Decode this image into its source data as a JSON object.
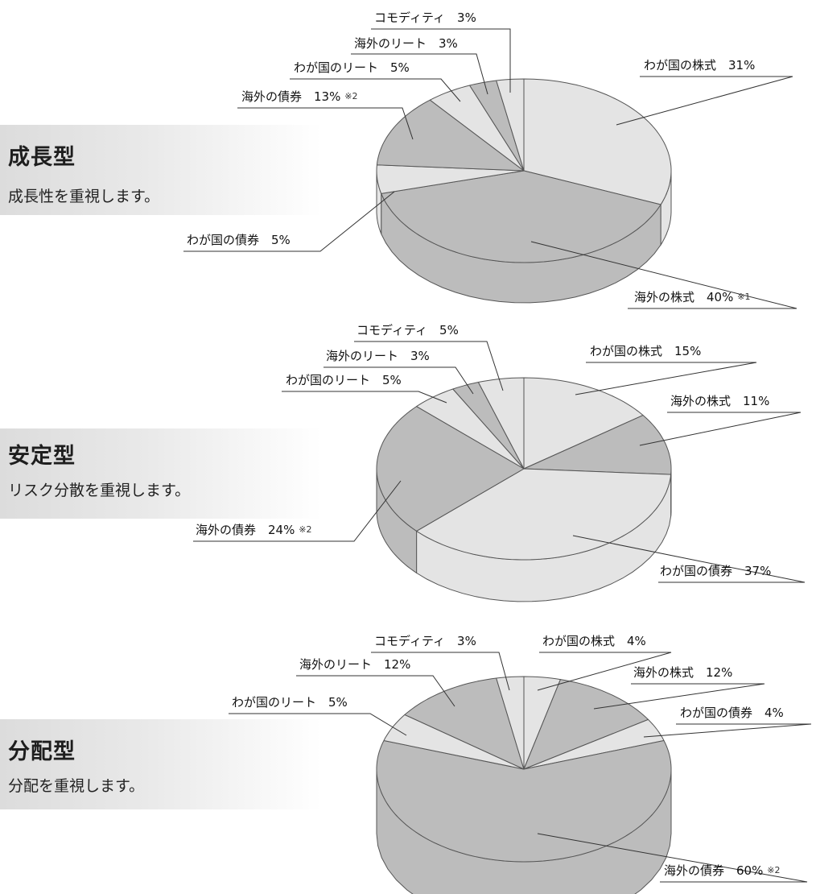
{
  "sections": [
    {
      "title": "成長型",
      "subtitle": "成長性を重視します。"
    },
    {
      "title": "安定型",
      "subtitle": "リスク分散を重視します。"
    },
    {
      "title": "分配型",
      "subtitle": "分配を重視します。"
    }
  ],
  "colors": {
    "dark": "#bcbcbc",
    "light": "#e4e4e4",
    "edge": "#555555"
  },
  "chart_data": [
    {
      "type": "pie",
      "title": "成長型",
      "slices": [
        {
          "label": "わが国の株式",
          "value": 31,
          "text": "わが国の株式　31%",
          "note": "",
          "shade": "light"
        },
        {
          "label": "海外の株式",
          "value": 40,
          "text": "海外の株式　40%",
          "note": "※1",
          "shade": "dark"
        },
        {
          "label": "わが国の債券",
          "value": 5,
          "text": "わが国の債券　5%",
          "note": "",
          "shade": "light"
        },
        {
          "label": "海外の債券",
          "value": 13,
          "text": "海外の債券　13%",
          "note": "※2",
          "shade": "dark"
        },
        {
          "label": "わが国のリート",
          "value": 5,
          "text": "わが国のリート　5%",
          "note": "",
          "shade": "light"
        },
        {
          "label": "海外のリート",
          "value": 3,
          "text": "海外のリート　3%",
          "note": "",
          "shade": "dark"
        },
        {
          "label": "コモディティ",
          "value": 3,
          "text": "コモディティ　3%",
          "note": "",
          "shade": "light"
        }
      ]
    },
    {
      "type": "pie",
      "title": "安定型",
      "slices": [
        {
          "label": "わが国の株式",
          "value": 15,
          "text": "わが国の株式　15%",
          "note": "",
          "shade": "light"
        },
        {
          "label": "海外の株式",
          "value": 11,
          "text": "海外の株式　11%",
          "note": "",
          "shade": "dark"
        },
        {
          "label": "わが国の債券",
          "value": 37,
          "text": "わが国の債券　37%",
          "note": "",
          "shade": "light"
        },
        {
          "label": "海外の債券",
          "value": 24,
          "text": "海外の債券　24%",
          "note": "※2",
          "shade": "dark"
        },
        {
          "label": "わが国のリート",
          "value": 5,
          "text": "わが国のリート　5%",
          "note": "",
          "shade": "light"
        },
        {
          "label": "海外のリート",
          "value": 3,
          "text": "海外のリート　3%",
          "note": "",
          "shade": "dark"
        },
        {
          "label": "コモディティ",
          "value": 5,
          "text": "コモディティ　5%",
          "note": "",
          "shade": "light"
        }
      ]
    },
    {
      "type": "pie",
      "title": "分配型",
      "slices": [
        {
          "label": "わが国の株式",
          "value": 4,
          "text": "わが国の株式　4%",
          "note": "",
          "shade": "light"
        },
        {
          "label": "海外の株式",
          "value": 12,
          "text": "海外の株式　12%",
          "note": "",
          "shade": "dark"
        },
        {
          "label": "わが国の債券",
          "value": 4,
          "text": "わが国の債券　4%",
          "note": "",
          "shade": "light"
        },
        {
          "label": "海外の債券",
          "value": 60,
          "text": "海外の債券　60%",
          "note": "※2",
          "shade": "dark"
        },
        {
          "label": "わが国のリート",
          "value": 5,
          "text": "わが国のリート　5%",
          "note": "",
          "shade": "light"
        },
        {
          "label": "海外のリート",
          "value": 12,
          "text": "海外のリート　12%",
          "note": "",
          "shade": "dark"
        },
        {
          "label": "コモディティ",
          "value": 3,
          "text": "コモディティ　3%",
          "note": "",
          "shade": "light"
        }
      ]
    }
  ]
}
